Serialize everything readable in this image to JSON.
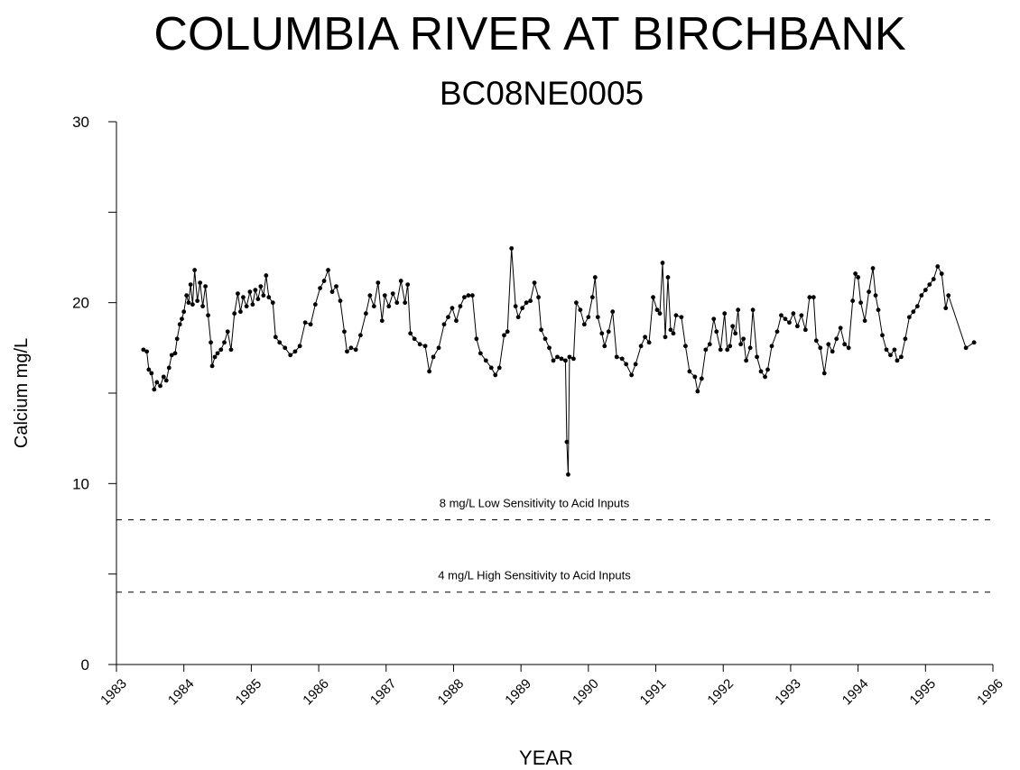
{
  "chart_data": {
    "type": "line",
    "title": "COLUMBIA RIVER AT BIRCHBANK",
    "subtitle": "BC08NE0005",
    "x_label": "YEAR",
    "y_label": "Calcium mg/L",
    "color": "#000000",
    "markers": true,
    "xlim": [
      1983,
      1996
    ],
    "xticks": [
      1983,
      1984,
      1985,
      1986,
      1987,
      1988,
      1989,
      1990,
      1991,
      1992,
      1993,
      1994,
      1995,
      1996
    ],
    "ylim": [
      0,
      30
    ],
    "yticks": [
      0,
      10,
      20,
      30
    ],
    "yminorticks": [
      5,
      15,
      25
    ],
    "reference_lines": [
      {
        "value": 8,
        "label": "8 mg/L  Low Sensitivity to Acid Inputs"
      },
      {
        "value": 4,
        "label": "4 mg/L  High Sensitivity to Acid Inputs"
      }
    ],
    "x": [
      1983.4,
      1983.45,
      1983.48,
      1983.52,
      1983.56,
      1983.6,
      1983.65,
      1983.7,
      1983.74,
      1983.78,
      1983.82,
      1983.87,
      1983.9,
      1983.94,
      1983.97,
      1984.0,
      1984.04,
      1984.07,
      1984.1,
      1984.13,
      1984.16,
      1984.2,
      1984.24,
      1984.28,
      1984.32,
      1984.36,
      1984.4,
      1984.42,
      1984.46,
      1984.5,
      1984.55,
      1984.6,
      1984.65,
      1984.7,
      1984.75,
      1984.8,
      1984.84,
      1984.88,
      1984.93,
      1984.98,
      1985.02,
      1985.06,
      1985.1,
      1985.14,
      1985.18,
      1985.22,
      1985.26,
      1985.32,
      1985.36,
      1985.42,
      1985.5,
      1985.58,
      1985.65,
      1985.72,
      1985.8,
      1985.88,
      1985.95,
      1986.02,
      1986.08,
      1986.14,
      1986.2,
      1986.26,
      1986.32,
      1986.38,
      1986.42,
      1986.48,
      1986.55,
      1986.62,
      1986.7,
      1986.76,
      1986.82,
      1986.88,
      1986.94,
      1986.98,
      1987.04,
      1987.1,
      1987.16,
      1987.22,
      1987.28,
      1987.32,
      1987.36,
      1987.42,
      1987.5,
      1987.58,
      1987.64,
      1987.7,
      1987.78,
      1987.86,
      1987.92,
      1987.98,
      1988.04,
      1988.1,
      1988.16,
      1988.22,
      1988.28,
      1988.34,
      1988.4,
      1988.48,
      1988.56,
      1988.62,
      1988.68,
      1988.75,
      1988.8,
      1988.86,
      1988.92,
      1988.96,
      1989.02,
      1989.08,
      1989.14,
      1989.2,
      1989.26,
      1989.3,
      1989.36,
      1989.42,
      1989.48,
      1989.54,
      1989.6,
      1989.66,
      1989.68,
      1989.7,
      1989.72,
      1989.78,
      1989.82,
      1989.88,
      1989.94,
      1990.0,
      1990.06,
      1990.1,
      1990.14,
      1990.2,
      1990.24,
      1990.3,
      1990.36,
      1990.42,
      1990.5,
      1990.56,
      1990.64,
      1990.7,
      1990.78,
      1990.84,
      1990.9,
      1990.96,
      1991.02,
      1991.06,
      1991.1,
      1991.14,
      1991.18,
      1991.22,
      1991.26,
      1991.3,
      1991.38,
      1991.44,
      1991.5,
      1991.58,
      1991.62,
      1991.68,
      1991.74,
      1991.8,
      1991.86,
      1991.9,
      1991.96,
      1992.02,
      1992.06,
      1992.1,
      1992.14,
      1992.18,
      1992.22,
      1992.26,
      1992.3,
      1992.34,
      1992.4,
      1992.44,
      1992.5,
      1992.56,
      1992.62,
      1992.66,
      1992.72,
      1992.8,
      1992.86,
      1992.92,
      1992.98,
      1993.04,
      1993.1,
      1993.16,
      1993.22,
      1993.28,
      1993.34,
      1993.38,
      1993.44,
      1993.5,
      1993.56,
      1993.62,
      1993.68,
      1993.74,
      1993.8,
      1993.86,
      1993.92,
      1993.96,
      1994.0,
      1994.04,
      1994.1,
      1994.16,
      1994.22,
      1994.26,
      1994.3,
      1994.36,
      1994.42,
      1994.48,
      1994.54,
      1994.58,
      1994.64,
      1994.7,
      1994.76,
      1994.82,
      1994.88,
      1994.94,
      1995.0,
      1995.06,
      1995.12,
      1995.18,
      1995.24,
      1995.3,
      1995.34,
      1995.6,
      1995.72
    ],
    "values": [
      17.4,
      17.3,
      16.3,
      16.1,
      15.2,
      15.6,
      15.4,
      15.9,
      15.7,
      16.4,
      17.1,
      17.2,
      18.0,
      18.8,
      19.1,
      19.5,
      20.4,
      20.0,
      21.0,
      19.9,
      21.8,
      20.1,
      21.1,
      19.8,
      20.9,
      19.3,
      17.8,
      16.5,
      17.0,
      17.2,
      17.4,
      17.8,
      18.4,
      17.4,
      19.4,
      20.5,
      19.5,
      20.3,
      19.8,
      20.6,
      19.9,
      20.7,
      20.2,
      20.9,
      20.4,
      21.5,
      20.3,
      20.0,
      18.1,
      17.8,
      17.5,
      17.1,
      17.3,
      17.6,
      18.9,
      18.8,
      19.9,
      20.8,
      21.2,
      21.8,
      20.6,
      20.9,
      20.1,
      18.4,
      17.3,
      17.5,
      17.4,
      18.2,
      19.4,
      20.4,
      19.8,
      21.1,
      19.0,
      20.4,
      19.8,
      20.5,
      20.0,
      21.2,
      20.0,
      21.0,
      18.3,
      18.0,
      17.7,
      17.6,
      16.2,
      17.0,
      17.5,
      18.8,
      19.2,
      19.7,
      19.0,
      19.8,
      20.3,
      20.4,
      20.4,
      18.0,
      17.2,
      16.8,
      16.4,
      16.0,
      16.4,
      18.2,
      18.4,
      23.0,
      19.8,
      19.2,
      19.7,
      20.0,
      20.1,
      21.1,
      20.3,
      18.5,
      18.0,
      17.5,
      16.8,
      17.0,
      16.9,
      16.8,
      12.3,
      10.5,
      17.0,
      16.9,
      20.0,
      19.6,
      18.8,
      19.2,
      20.3,
      21.4,
      19.2,
      18.3,
      17.6,
      18.4,
      19.5,
      17.0,
      16.9,
      16.6,
      16.0,
      16.6,
      17.6,
      18.1,
      17.8,
      20.3,
      19.6,
      19.4,
      22.2,
      18.1,
      21.4,
      18.5,
      18.3,
      19.3,
      19.2,
      17.6,
      16.2,
      15.9,
      15.1,
      15.8,
      17.4,
      17.7,
      19.1,
      18.4,
      17.4,
      19.4,
      17.4,
      17.6,
      18.7,
      18.3,
      19.6,
      17.7,
      18.0,
      16.8,
      17.5,
      19.6,
      17.0,
      16.2,
      15.9,
      16.3,
      17.6,
      18.4,
      19.3,
      19.1,
      18.9,
      19.4,
      18.7,
      19.3,
      18.5,
      20.3,
      20.3,
      17.9,
      17.5,
      16.1,
      17.7,
      17.3,
      18.0,
      18.6,
      17.7,
      17.5,
      20.1,
      21.6,
      21.4,
      20.0,
      19.0,
      20.6,
      21.9,
      20.4,
      19.6,
      18.2,
      17.4,
      17.1,
      17.4,
      16.8,
      17.0,
      18.0,
      19.2,
      19.5,
      19.8,
      20.4,
      20.7,
      21.0,
      21.3,
      22.0,
      21.6,
      19.7,
      20.4,
      17.5,
      17.8
    ]
  }
}
